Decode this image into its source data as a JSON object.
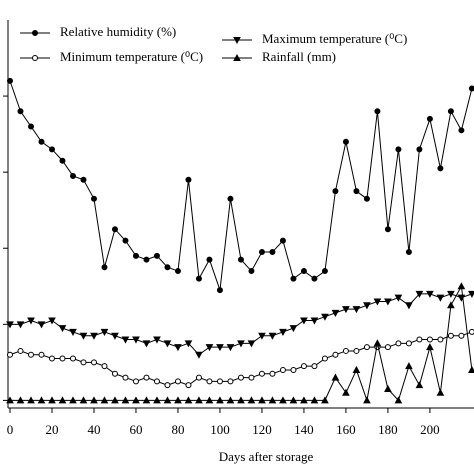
{
  "chart_data": {
    "type": "line",
    "xlabel": "Days after storage",
    "x": [
      0,
      5,
      10,
      15,
      20,
      25,
      30,
      35,
      40,
      45,
      50,
      55,
      60,
      65,
      70,
      75,
      80,
      85,
      90,
      95,
      100,
      105,
      110,
      115,
      120,
      125,
      130,
      135,
      140,
      145,
      150,
      155,
      160,
      165,
      170,
      175,
      180,
      185,
      190,
      195,
      200,
      205,
      210,
      215,
      220
    ],
    "series": [
      {
        "name": "Relative humidity (%)",
        "color": "#000000",
        "marker": "filled-circle",
        "values": [
          84,
          76,
          72,
          68,
          66,
          63,
          59,
          58,
          53,
          35,
          45,
          42,
          38,
          37,
          38,
          35,
          34,
          58,
          32,
          37,
          29,
          53,
          37,
          34,
          39,
          39,
          42,
          32,
          34,
          32,
          34,
          55,
          68,
          55,
          53,
          76,
          45,
          66,
          39,
          66,
          74,
          61,
          76,
          71,
          82
        ]
      },
      {
        "name": "Minimum temperature (⁰C)",
        "color": "#000000",
        "marker": "open-circle",
        "values": [
          12,
          13,
          12,
          12,
          11,
          11,
          11,
          10,
          10,
          9,
          7,
          6,
          5,
          6,
          5,
          4,
          5,
          4,
          6,
          5,
          5,
          5,
          6,
          6,
          7,
          7,
          8,
          8,
          9,
          9,
          11,
          12,
          13,
          13,
          14,
          14,
          14,
          15,
          15,
          16,
          16,
          16,
          17,
          17,
          18
        ]
      },
      {
        "name": "Maximum temperature (⁰C)",
        "color": "#000000",
        "marker": "down-triangle",
        "values": [
          20,
          20,
          21,
          20,
          21,
          19,
          18,
          17,
          17,
          18,
          17,
          16,
          16,
          15,
          16,
          15,
          14,
          15,
          12,
          14,
          14,
          14,
          15,
          15,
          17,
          17,
          18,
          19,
          21,
          21,
          22,
          23,
          24,
          24,
          25,
          26,
          26,
          27,
          25,
          28,
          28,
          27,
          28,
          27,
          28
        ]
      },
      {
        "name": "Rainfall (mm)",
        "color": "#000000",
        "marker": "up-triangle",
        "values": [
          0,
          0,
          0,
          0,
          0,
          0,
          0,
          0,
          0,
          0,
          0,
          0,
          0,
          0,
          0,
          0,
          0,
          0,
          0,
          0,
          0,
          0,
          0,
          0,
          0,
          0,
          0,
          0,
          0,
          0,
          0,
          6,
          2,
          8,
          0,
          15,
          3,
          0,
          9,
          4,
          14,
          2,
          25,
          30,
          8
        ]
      }
    ],
    "xlim": [
      0,
      221
    ],
    "xticks": [
      0,
      20,
      40,
      60,
      80,
      100,
      120,
      140,
      160,
      180,
      200
    ],
    "ylim": [
      -2,
      100
    ],
    "yticks": [
      0,
      20,
      40,
      60,
      80
    ]
  }
}
